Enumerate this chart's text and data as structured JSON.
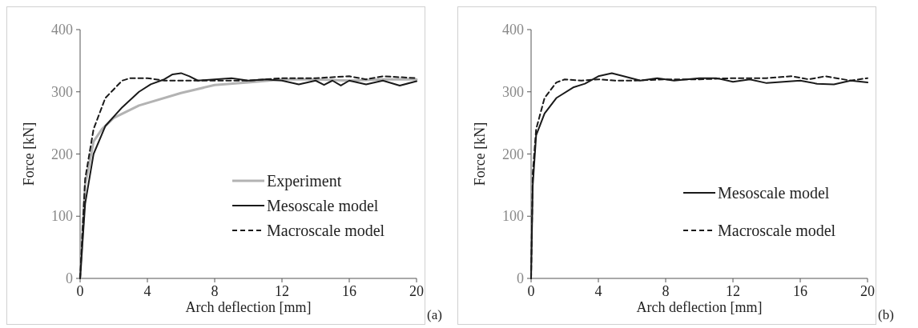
{
  "chart_data": [
    {
      "type": "line",
      "xlabel": "Arch deflection [mm]",
      "ylabel": "Force [kN]",
      "xlim": [
        0,
        20
      ],
      "ylim": [
        0,
        400
      ],
      "xticks": [
        0,
        4,
        8,
        12,
        16,
        20
      ],
      "yticks": [
        0,
        100,
        200,
        300,
        400
      ],
      "legend": "bottom right",
      "grid": false,
      "annotations": [
        "(a)"
      ],
      "series": [
        {
          "name": "Experiment",
          "color": "#b3b3b3",
          "line_style": "solid",
          "x": [
            0,
            0.3,
            0.8,
            1.3,
            2,
            3.5,
            6,
            8,
            10,
            12,
            14,
            16,
            18,
            20
          ],
          "values": [
            0,
            150,
            220,
            240,
            258,
            278,
            298,
            311,
            315,
            320,
            320,
            318,
            320,
            320
          ]
        },
        {
          "name": "Mesoscale model",
          "color": "#1a1a1a",
          "line_style": "solid",
          "x": [
            0,
            0.3,
            0.8,
            1.5,
            2.5,
            3.5,
            4.2,
            5,
            5.5,
            6,
            6.5,
            7,
            8,
            9,
            10,
            11,
            12,
            13,
            14,
            14.5,
            15,
            15.5,
            16,
            17,
            18,
            19,
            20
          ],
          "values": [
            0,
            120,
            200,
            245,
            275,
            300,
            312,
            320,
            328,
            330,
            325,
            318,
            320,
            322,
            318,
            320,
            318,
            312,
            318,
            311,
            318,
            310,
            318,
            312,
            318,
            310,
            317
          ]
        },
        {
          "name": "Macroscale model",
          "color": "#1a1a1a",
          "line_style": "dashed",
          "x": [
            0,
            0.3,
            0.8,
            1.5,
            2.5,
            3,
            4,
            5,
            6,
            8,
            10,
            12,
            14,
            16,
            17,
            18,
            20
          ],
          "values": [
            0,
            160,
            240,
            290,
            318,
            322,
            322,
            318,
            318,
            318,
            318,
            322,
            322,
            325,
            320,
            325,
            322
          ]
        }
      ]
    },
    {
      "type": "line",
      "xlabel": "Arch deflection [mm]",
      "ylabel": "Force [kN]",
      "xlim": [
        0,
        20
      ],
      "ylim": [
        0,
        400
      ],
      "xticks": [
        0,
        4,
        8,
        12,
        16,
        20
      ],
      "yticks": [
        0,
        100,
        200,
        300,
        400
      ],
      "legend": "bottom right",
      "grid": false,
      "annotations": [
        "(b)"
      ],
      "series": [
        {
          "name": "Mesoscale model",
          "color": "#1a1a1a",
          "line_style": "solid",
          "x": [
            0,
            0.1,
            0.3,
            0.8,
            1.5,
            2.5,
            3.2,
            4,
            4.8,
            5.5,
            6.5,
            7.5,
            8.5,
            10,
            11,
            12,
            13,
            14,
            15,
            16,
            17,
            18,
            19,
            20
          ],
          "values": [
            0,
            150,
            230,
            265,
            290,
            307,
            313,
            325,
            330,
            325,
            318,
            322,
            318,
            322,
            322,
            316,
            320,
            314,
            316,
            318,
            313,
            312,
            318,
            315
          ]
        },
        {
          "name": "Macroscale model",
          "color": "#1a1a1a",
          "line_style": "dashed",
          "x": [
            0,
            0.1,
            0.3,
            0.8,
            1.5,
            2,
            3,
            4,
            5,
            6,
            8,
            10,
            12,
            14,
            15.5,
            16.5,
            17.5,
            19,
            20
          ],
          "values": [
            0,
            170,
            240,
            290,
            315,
            320,
            318,
            320,
            318,
            318,
            320,
            320,
            322,
            322,
            325,
            320,
            325,
            318,
            322
          ]
        }
      ]
    }
  ]
}
